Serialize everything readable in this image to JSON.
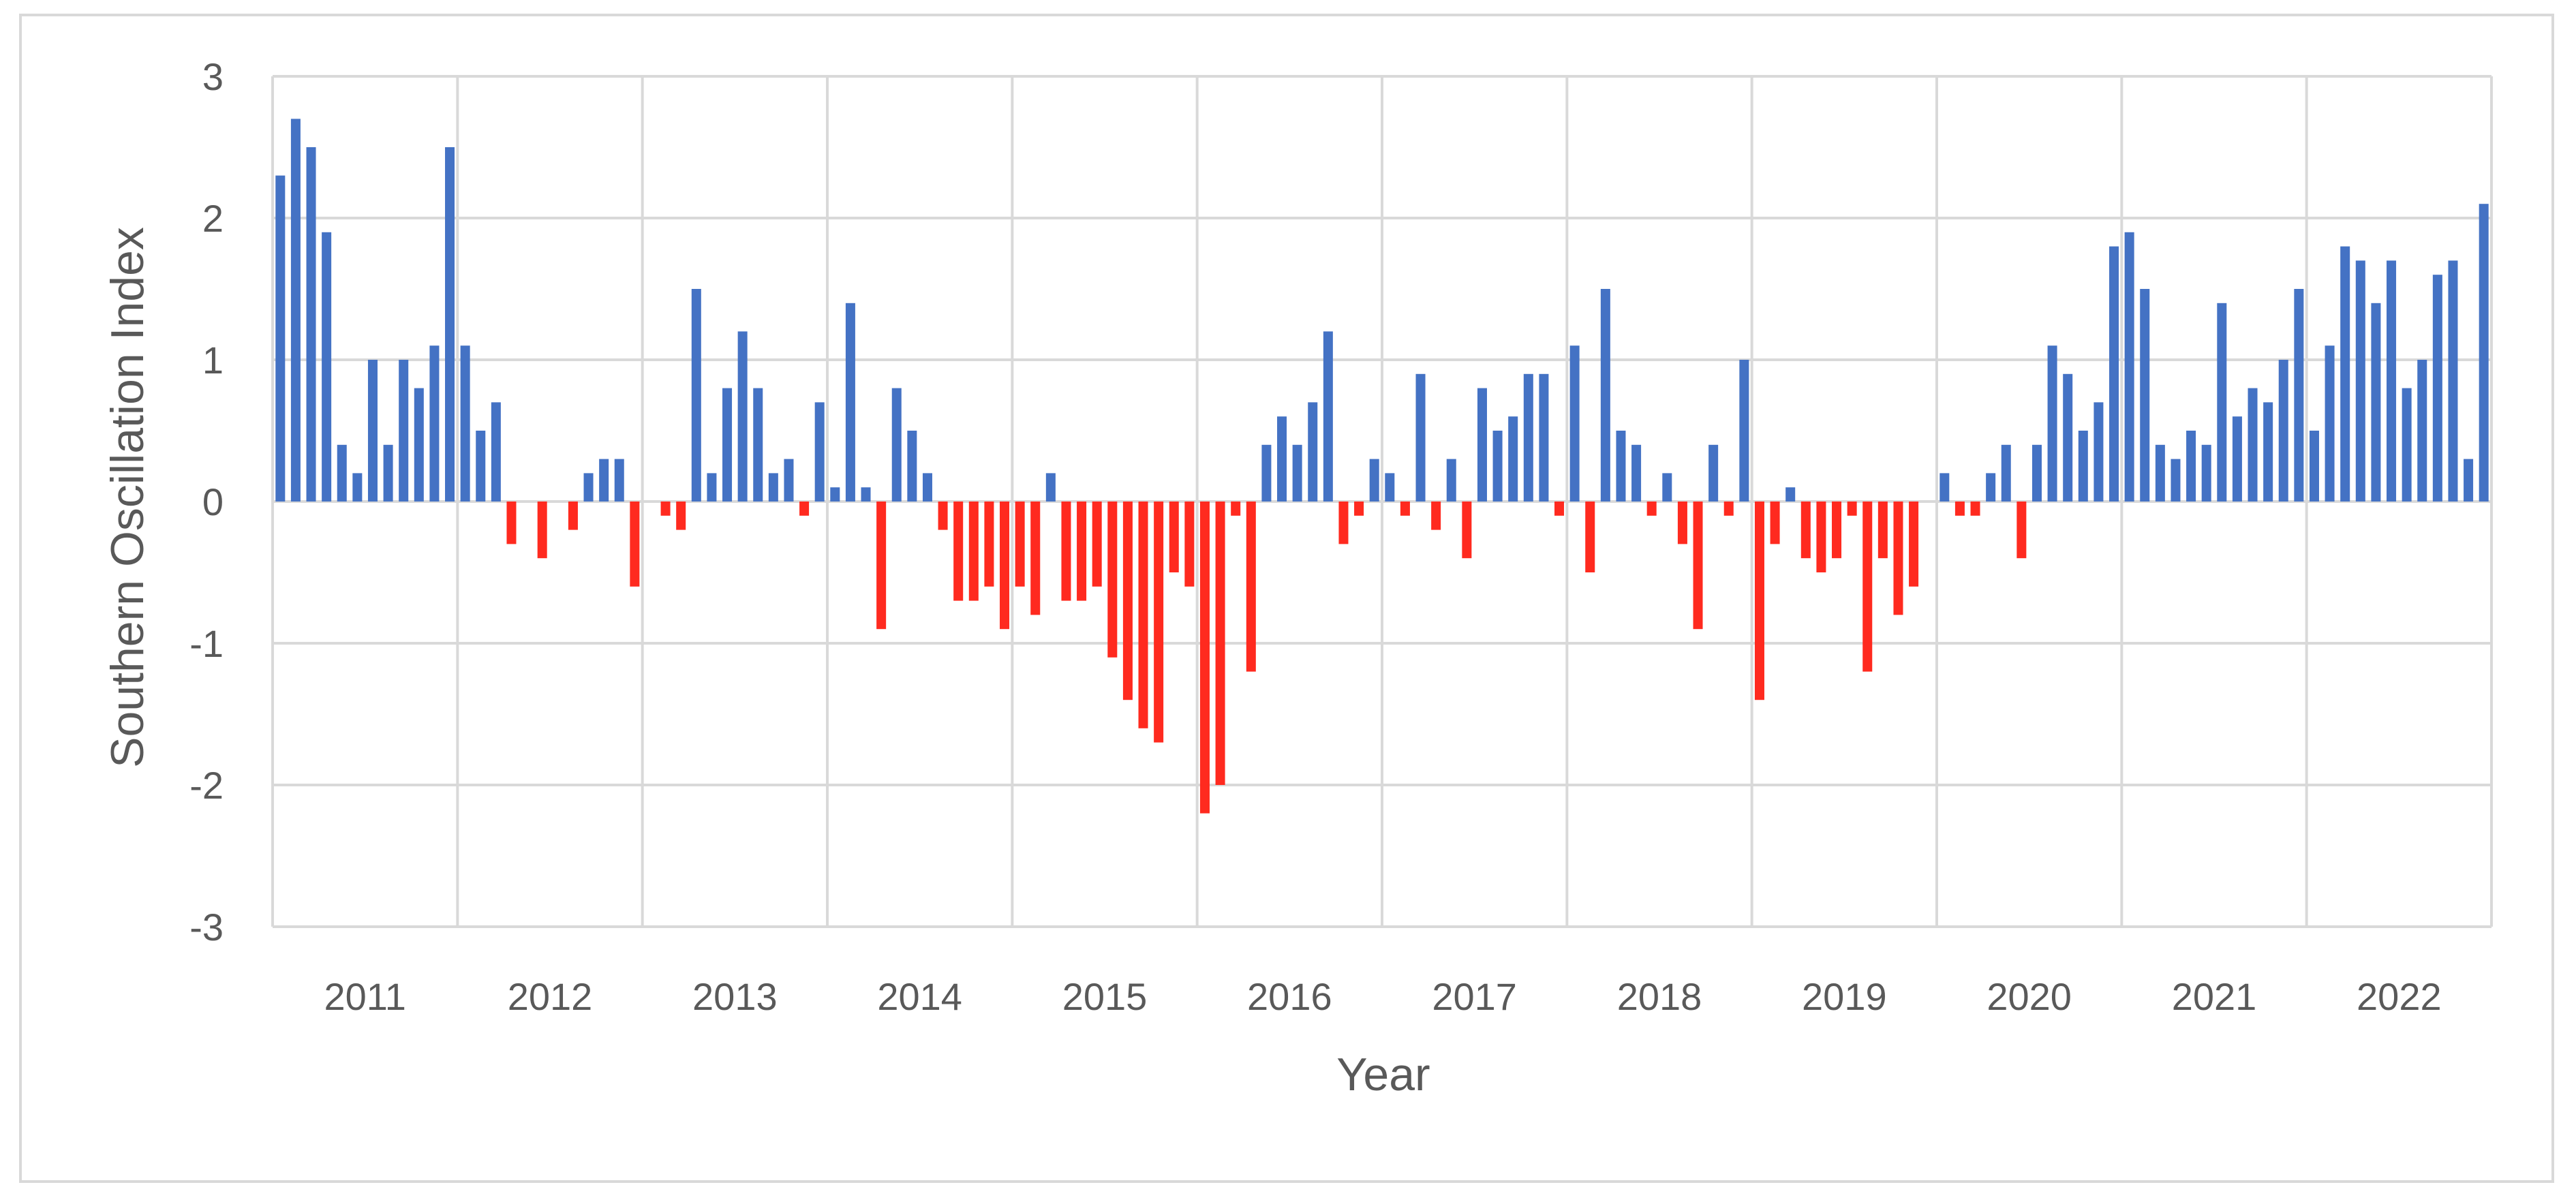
{
  "chart_data": {
    "type": "bar",
    "title": "",
    "xlabel": "Year",
    "ylabel": "Southern Oscillation Index",
    "ylim": [
      -3,
      3
    ],
    "yticks": [
      3,
      2,
      1,
      0,
      -1,
      -2,
      -3
    ],
    "grid": true,
    "legend": "none",
    "colors": {
      "positive": "#4472c4",
      "negative": "#ff2a1f",
      "grid": "#d9d9d9"
    },
    "categories": [
      "2011",
      "2012",
      "2013",
      "2014",
      "2015",
      "2016",
      "2017",
      "2018",
      "2019",
      "2020",
      "2021",
      "2022"
    ],
    "values_monthly": [
      [
        2.3,
        2.7,
        2.5,
        1.9,
        0.4,
        0.2,
        1.0,
        0.4,
        1.0,
        0.8,
        1.1,
        2.5
      ],
      [
        1.1,
        0.5,
        0.7,
        -0.3,
        0.0,
        -0.4,
        0.0,
        -0.2,
        0.2,
        0.3,
        0.3,
        -0.6
      ],
      [
        0.0,
        -0.1,
        -0.2,
        1.5,
        0.2,
        0.8,
        1.2,
        0.8,
        0.2,
        0.3,
        -0.1,
        0.7
      ],
      [
        0.1,
        1.4,
        0.1,
        -0.9,
        0.8,
        0.5,
        0.2,
        -0.2,
        -0.7,
        -0.7,
        -0.6,
        -0.9
      ],
      [
        -0.6,
        -0.8,
        0.2,
        -0.7,
        -0.7,
        -0.6,
        -1.1,
        -1.4,
        -1.6,
        -1.7,
        -0.5,
        -0.6
      ],
      [
        -2.2,
        -2.0,
        -0.1,
        -1.2,
        0.4,
        0.6,
        0.4,
        0.7,
        1.2,
        -0.3,
        -0.1,
        0.3
      ],
      [
        0.2,
        -0.1,
        0.9,
        -0.2,
        0.3,
        -0.4,
        0.8,
        0.5,
        0.6,
        0.9,
        0.9,
        -0.1
      ],
      [
        1.1,
        -0.5,
        1.5,
        0.5,
        0.4,
        -0.1,
        0.2,
        -0.3,
        -0.9,
        0.4,
        -0.1,
        1.0
      ],
      [
        -1.4,
        -0.3,
        0.1,
        -0.4,
        -0.5,
        -0.4,
        -0.1,
        -1.2,
        -0.4,
        -0.8,
        -0.6,
        0.0
      ],
      [
        0.2,
        -0.1,
        -0.1,
        0.2,
        0.4,
        -0.4,
        0.4,
        1.1,
        0.9,
        0.5,
        0.7,
        1.8
      ],
      [
        1.9,
        1.5,
        0.4,
        0.3,
        0.5,
        0.4,
        1.4,
        0.6,
        0.8,
        0.7,
        1.0,
        1.5
      ],
      [
        0.5,
        1.1,
        1.8,
        1.7,
        1.4,
        1.7,
        0.8,
        1.0,
        1.6,
        1.7,
        0.3,
        2.1
      ]
    ]
  }
}
